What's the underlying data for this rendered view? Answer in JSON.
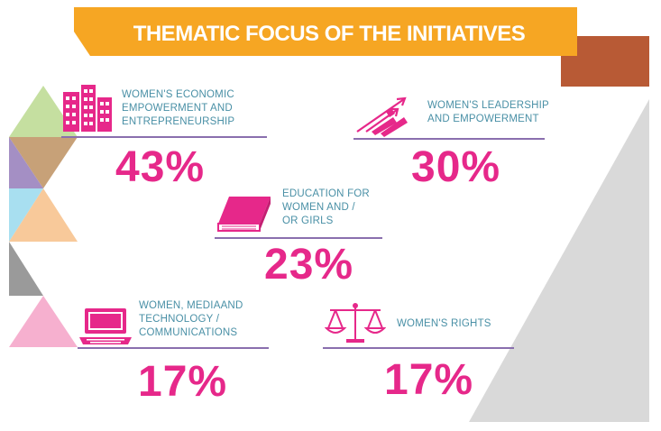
{
  "header": {
    "title": "THEMATIC FOCUS OF THE INITIATIVES"
  },
  "colors": {
    "banner": "#f6a623",
    "accent_brown": "#b85a35",
    "pink": "#e6288a",
    "label_blue": "#4a90a6",
    "rule_purple": "#8a6fae",
    "tri_green": "#c5dfa0",
    "tri_purple": "#a48fc4",
    "tri_blue": "#a8dff0",
    "tri_peach": "#f8c99a",
    "tri_grey": "#9a9a9a",
    "tri_pink": "#f6b0cf",
    "side_grey": "#d9d9d9"
  },
  "items": [
    {
      "icon": "buildings-icon",
      "label_lines": [
        "WOMEN'S ECONOMIC",
        "EMPOWERMENT AND",
        "ENTREPRENEURSHIP"
      ],
      "percent": "43%"
    },
    {
      "icon": "arrows-up-icon",
      "label_lines": [
        "WOMEN'S LEADERSHIP",
        "AND EMPOWERMENT"
      ],
      "percent": "30%"
    },
    {
      "icon": "book-icon",
      "label_lines": [
        "EDUCATION FOR",
        "WOMEN AND /",
        "OR GIRLS"
      ],
      "percent": "23%"
    },
    {
      "icon": "laptop-icon",
      "label_lines": [
        "WOMEN, MEDIAAND",
        "TECHNOLOGY /",
        "COMMUNICATIONS"
      ],
      "percent": "17%"
    },
    {
      "icon": "scales-icon",
      "label_lines": [
        "WOMEN'S RIGHTS"
      ],
      "percent": "17%"
    }
  ]
}
